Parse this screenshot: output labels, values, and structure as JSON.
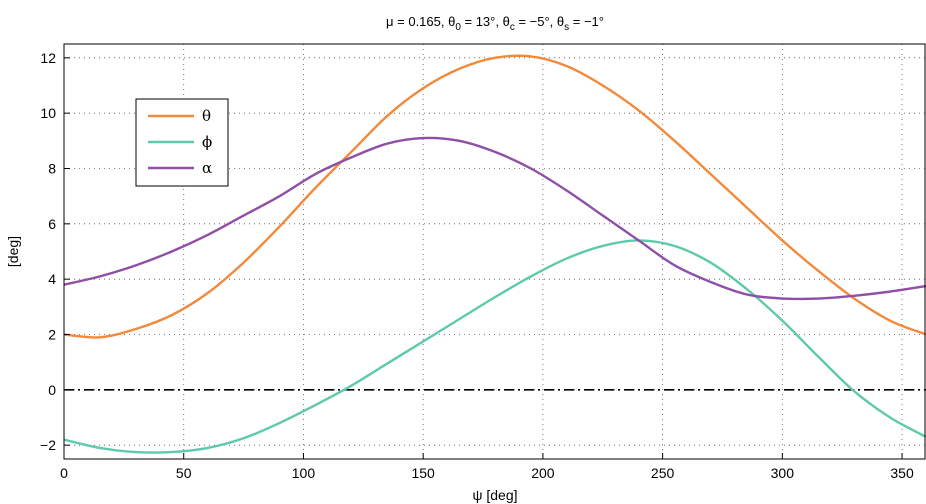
{
  "chart_data": {
    "type": "line",
    "title_parts": [
      {
        "t": "μ = 0.165, θ",
        "sub": false
      },
      {
        "t": "0",
        "sub": true
      },
      {
        "t": " = 13°, θ",
        "sub": false
      },
      {
        "t": "c",
        "sub": true
      },
      {
        "t": " = −5°, θ",
        "sub": false
      },
      {
        "t": "s",
        "sub": true
      },
      {
        "t": " = −1°",
        "sub": false
      }
    ],
    "xlabel": "ψ [deg]",
    "ylabel": "[deg]",
    "xlim": [
      0,
      360
    ],
    "ylim": [
      -2.5,
      12.5
    ],
    "xticks": [
      0,
      50,
      100,
      150,
      200,
      250,
      300,
      350
    ],
    "yticks": [
      -2,
      0,
      2,
      4,
      6,
      8,
      10,
      12
    ],
    "grid": true,
    "legend_position": "upper-left",
    "zero_line": {
      "y": 0,
      "style": "dash-dot",
      "color": "#000000"
    },
    "x": [
      0,
      15,
      30,
      45,
      60,
      75,
      90,
      105,
      120,
      135,
      150,
      165,
      180,
      195,
      210,
      225,
      240,
      255,
      270,
      285,
      300,
      315,
      330,
      345,
      360
    ],
    "series": [
      {
        "name": "θ",
        "color": "#f28a3c",
        "values": [
          2.0,
          1.9,
          2.2,
          2.7,
          3.5,
          4.6,
          5.9,
          7.3,
          8.6,
          9.9,
          10.9,
          11.6,
          12.0,
          12.05,
          11.7,
          11.0,
          10.1,
          9.0,
          7.8,
          6.6,
          5.4,
          4.3,
          3.3,
          2.5,
          2.0
        ]
      },
      {
        "name": "ϕ",
        "color": "#5fc9ab",
        "values": [
          -1.8,
          -2.1,
          -2.25,
          -2.25,
          -2.1,
          -1.75,
          -1.2,
          -0.55,
          0.15,
          0.95,
          1.75,
          2.55,
          3.35,
          4.1,
          4.75,
          5.2,
          5.4,
          5.2,
          4.6,
          3.65,
          2.5,
          1.2,
          -0.05,
          -1.0,
          -1.7
        ]
      },
      {
        "name": "α",
        "color": "#8f4fa6",
        "values": [
          3.8,
          4.1,
          4.5,
          5.0,
          5.6,
          6.3,
          7.0,
          7.8,
          8.4,
          8.9,
          9.1,
          9.0,
          8.6,
          8.0,
          7.2,
          6.3,
          5.4,
          4.5,
          3.9,
          3.45,
          3.3,
          3.3,
          3.4,
          3.55,
          3.75
        ]
      }
    ]
  }
}
